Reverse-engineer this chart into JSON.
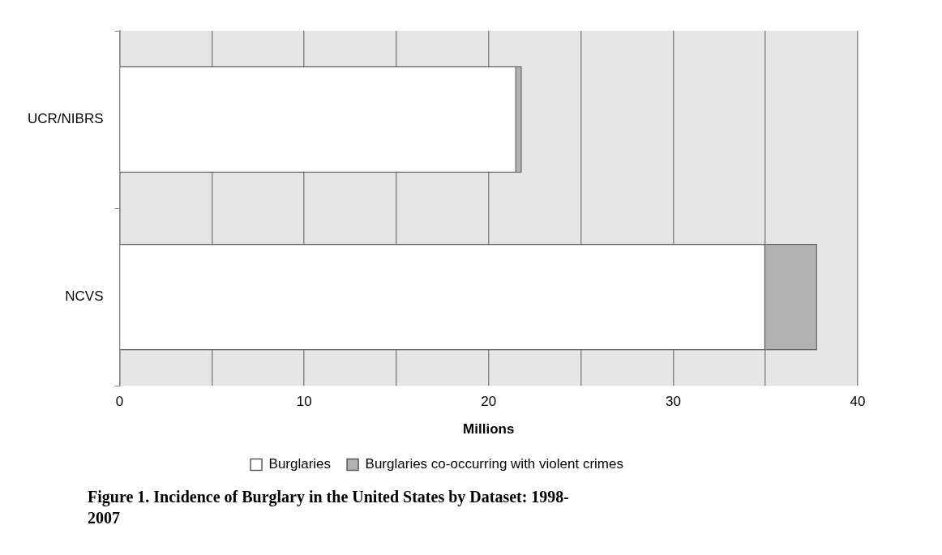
{
  "chart_data": {
    "type": "bar",
    "orientation": "horizontal",
    "stacked": true,
    "title": "Figure 1. Incidence of Burglary in the United States by Dataset: 1998-2007",
    "xlabel": "Millions",
    "categories": [
      "UCR/NIBRS",
      "NCVS"
    ],
    "series": [
      {
        "name": "Burglaries",
        "color": "#ffffff",
        "values": [
          21.5,
          35.0
        ]
      },
      {
        "name": "Burglaries co-occurring with violent crimes",
        "color": "#b2b2b2",
        "values": [
          0.3,
          2.8
        ]
      }
    ],
    "xlim": [
      0,
      40
    ],
    "xticks": [
      0,
      {
        "value": 5,
        "label": null
      },
      10,
      {
        "value": 15,
        "label": null
      },
      20,
      {
        "value": 25,
        "label": null
      },
      30,
      {
        "value": 35,
        "label": null
      },
      40
    ],
    "grid": "x",
    "legend": "bottom"
  }
}
